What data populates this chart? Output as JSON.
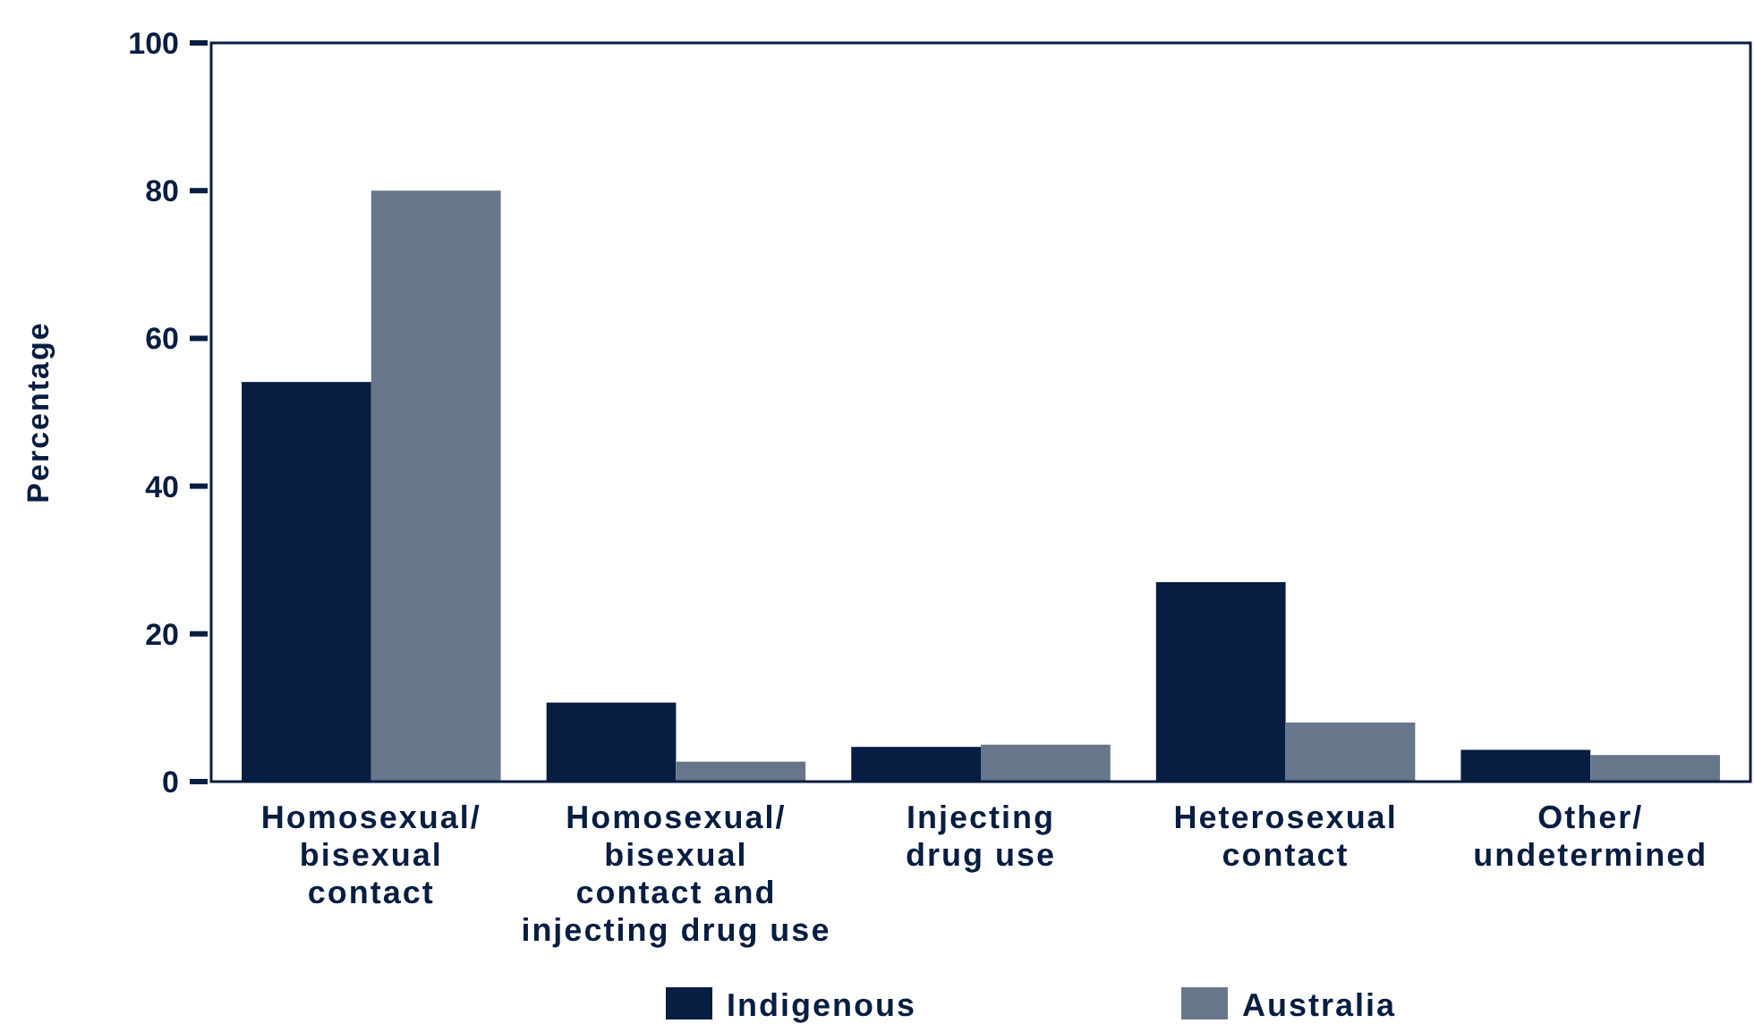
{
  "chart_data": {
    "type": "bar",
    "ylabel": "Percentage",
    "categories": [
      "Homosexual/\nbisexual\ncontact",
      "Homosexual/\nbisexual\ncontact and\ninjecting drug use",
      "Injecting\ndrug use",
      "Heterosexual\ncontact",
      "Other/\nundetermined"
    ],
    "series": [
      {
        "name": "Indigenous",
        "color": "#071d42",
        "values": [
          54.1,
          10.7,
          4.7,
          27,
          4.3
        ]
      },
      {
        "name": "Australia",
        "color": "#68768c",
        "values": [
          80,
          2.7,
          5,
          8,
          3.6
        ]
      }
    ],
    "ylim": [
      0,
      100
    ],
    "yticks": [
      0,
      20,
      40,
      60,
      80,
      100
    ],
    "grid": false,
    "legend": "bottom"
  }
}
